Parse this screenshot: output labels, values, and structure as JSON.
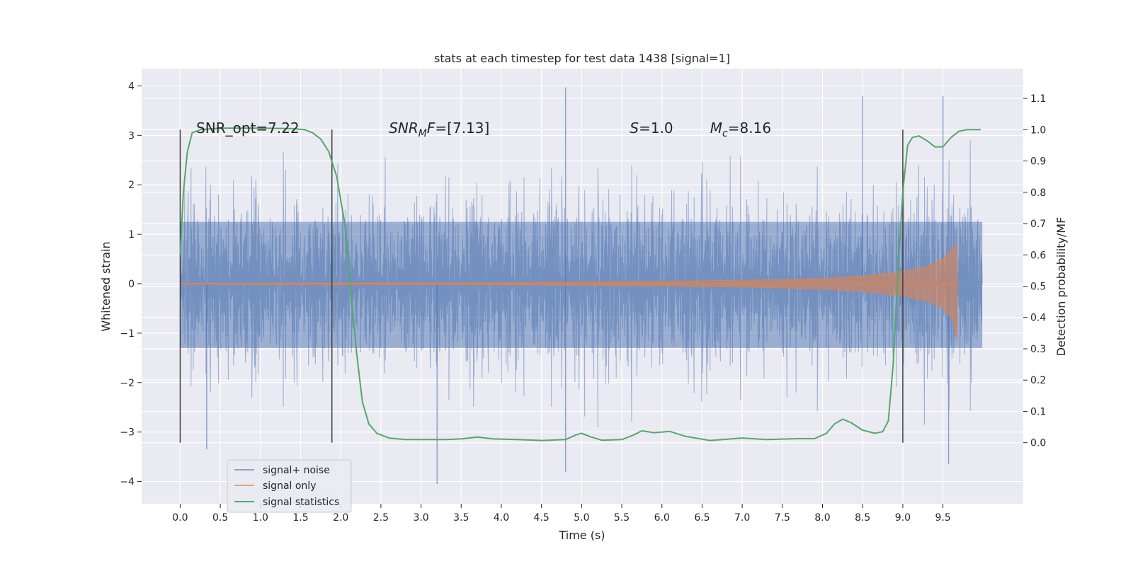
{
  "chart_data": {
    "type": "line",
    "title": "stats at each timestep for test data 1438 [signal=1]",
    "xlabel": "Time (s)",
    "ylabel_left": "Whitened strain",
    "ylabel_right": "Detection probability/MF",
    "xlim": [
      -0.48,
      10.5
    ],
    "ylim_left": [
      -4.45,
      4.35
    ],
    "ylim_right": [
      -0.195,
      1.195
    ],
    "x_ticks": [
      "0.0",
      "0.5",
      "1.0",
      "1.5",
      "2.0",
      "2.5",
      "3.0",
      "3.5",
      "4.0",
      "4.5",
      "5.0",
      "5.5",
      "6.0",
      "6.5",
      "7.0",
      "7.5",
      "8.0",
      "8.5",
      "9.0",
      "9.5"
    ],
    "y_ticks_left": [
      "4",
      "3",
      "2",
      "1",
      "0",
      "−1",
      "−2",
      "−3",
      "−4"
    ],
    "y_ticks_right": [
      "1.1",
      "1.0",
      "0.9",
      "0.8",
      "0.7",
      "0.6",
      "0.5",
      "0.4",
      "0.3",
      "0.2",
      "0.1",
      "0.0"
    ],
    "grid": true,
    "legend_position": "lower-left",
    "colors": {
      "background": "#eaeaf2",
      "grid": "#ffffff",
      "noise": "#4c72b0",
      "signal": "#dd8452",
      "statistics": "#55a868",
      "markers": "#404040"
    },
    "annotations": [
      {
        "prefix": "SNR_opt=7.22",
        "sub": "",
        "suffix": "",
        "x": 0.2
      },
      {
        "prefix": "SNR",
        "sub": "M",
        "suffix": "F=[7.13]",
        "x": 2.6,
        "italic": true
      },
      {
        "prefix": "S",
        "sub": "",
        "suffix": "=1.0",
        "x": 5.6,
        "italic": true
      },
      {
        "prefix": "M",
        "sub": "c",
        "suffix": "=8.16",
        "x": 6.6,
        "italic": true
      }
    ],
    "vertical_markers": [
      0.0,
      1.89,
      9.0
    ],
    "series": [
      {
        "name": "signal+ noise",
        "kind": "noise_band",
        "x_range": [
          0.0,
          9.99
        ],
        "band_approx": [
          -2.0,
          2.0
        ],
        "extreme_spikes": [
          {
            "x": 4.8,
            "y": 3.97
          },
          {
            "x": 8.5,
            "y": 3.8
          },
          {
            "x": 9.5,
            "y": 3.8
          },
          {
            "x": 3.2,
            "y": -4.05
          },
          {
            "x": 4.8,
            "y": -3.8
          },
          {
            "x": 9.57,
            "y": -3.65
          },
          {
            "x": 0.33,
            "y": -3.35
          }
        ]
      },
      {
        "name": "signal only",
        "kind": "chirp_envelope",
        "points": [
          {
            "x": 0.0,
            "y": 0.01
          },
          {
            "x": 4.0,
            "y": 0.02
          },
          {
            "x": 5.5,
            "y": 0.04
          },
          {
            "x": 7.0,
            "y": 0.07
          },
          {
            "x": 8.0,
            "y": 0.11
          },
          {
            "x": 8.5,
            "y": 0.16
          },
          {
            "x": 9.0,
            "y": 0.25
          },
          {
            "x": 9.3,
            "y": 0.35
          },
          {
            "x": 9.5,
            "y": 0.5
          },
          {
            "x": 9.62,
            "y": 0.72
          },
          {
            "x": 9.68,
            "y": 0.8
          }
        ],
        "end_x": 9.68,
        "end_min": -1.15
      },
      {
        "name": "signal statistics",
        "axis": "right",
        "points": [
          {
            "x": 0.0,
            "y": 0.6
          },
          {
            "x": 0.04,
            "y": 0.8
          },
          {
            "x": 0.09,
            "y": 0.93
          },
          {
            "x": 0.15,
            "y": 0.99
          },
          {
            "x": 0.25,
            "y": 1.0
          },
          {
            "x": 0.5,
            "y": 1.005
          },
          {
            "x": 1.0,
            "y": 1.005
          },
          {
            "x": 1.4,
            "y": 1.003
          },
          {
            "x": 1.55,
            "y": 1.0
          },
          {
            "x": 1.65,
            "y": 0.99
          },
          {
            "x": 1.75,
            "y": 0.97
          },
          {
            "x": 1.85,
            "y": 0.93
          },
          {
            "x": 1.95,
            "y": 0.85
          },
          {
            "x": 2.05,
            "y": 0.7
          },
          {
            "x": 2.12,
            "y": 0.5
          },
          {
            "x": 2.2,
            "y": 0.28
          },
          {
            "x": 2.27,
            "y": 0.13
          },
          {
            "x": 2.35,
            "y": 0.06
          },
          {
            "x": 2.45,
            "y": 0.03
          },
          {
            "x": 2.6,
            "y": 0.015
          },
          {
            "x": 2.8,
            "y": 0.01
          },
          {
            "x": 3.3,
            "y": 0.01
          },
          {
            "x": 3.5,
            "y": 0.012
          },
          {
            "x": 3.7,
            "y": 0.018
          },
          {
            "x": 3.9,
            "y": 0.012
          },
          {
            "x": 4.2,
            "y": 0.01
          },
          {
            "x": 4.5,
            "y": 0.007
          },
          {
            "x": 4.8,
            "y": 0.01
          },
          {
            "x": 4.93,
            "y": 0.025
          },
          {
            "x": 5.0,
            "y": 0.03
          },
          {
            "x": 5.1,
            "y": 0.02
          },
          {
            "x": 5.25,
            "y": 0.008
          },
          {
            "x": 5.5,
            "y": 0.01
          },
          {
            "x": 5.65,
            "y": 0.025
          },
          {
            "x": 5.75,
            "y": 0.038
          },
          {
            "x": 5.9,
            "y": 0.032
          },
          {
            "x": 6.1,
            "y": 0.036
          },
          {
            "x": 6.3,
            "y": 0.02
          },
          {
            "x": 6.6,
            "y": 0.007
          },
          {
            "x": 7.0,
            "y": 0.015
          },
          {
            "x": 7.3,
            "y": 0.01
          },
          {
            "x": 7.7,
            "y": 0.013
          },
          {
            "x": 7.9,
            "y": 0.013
          },
          {
            "x": 8.05,
            "y": 0.03
          },
          {
            "x": 8.15,
            "y": 0.06
          },
          {
            "x": 8.25,
            "y": 0.075
          },
          {
            "x": 8.35,
            "y": 0.065
          },
          {
            "x": 8.5,
            "y": 0.04
          },
          {
            "x": 8.65,
            "y": 0.03
          },
          {
            "x": 8.75,
            "y": 0.035
          },
          {
            "x": 8.82,
            "y": 0.07
          },
          {
            "x": 8.88,
            "y": 0.25
          },
          {
            "x": 8.94,
            "y": 0.55
          },
          {
            "x": 9.0,
            "y": 0.8
          },
          {
            "x": 9.06,
            "y": 0.95
          },
          {
            "x": 9.12,
            "y": 0.975
          },
          {
            "x": 9.2,
            "y": 0.98
          },
          {
            "x": 9.3,
            "y": 0.965
          },
          {
            "x": 9.4,
            "y": 0.945
          },
          {
            "x": 9.5,
            "y": 0.945
          },
          {
            "x": 9.6,
            "y": 0.975
          },
          {
            "x": 9.7,
            "y": 0.995
          },
          {
            "x": 9.8,
            "y": 1.0
          },
          {
            "x": 9.97,
            "y": 1.0
          }
        ]
      }
    ]
  }
}
